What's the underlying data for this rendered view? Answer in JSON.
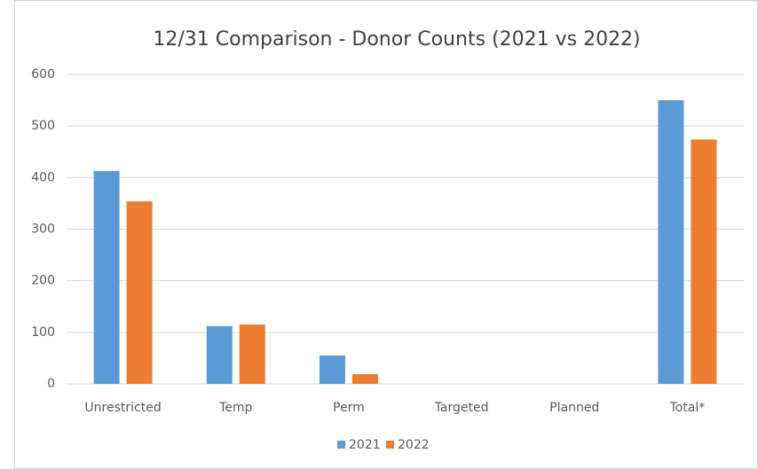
{
  "chart_data": {
    "type": "bar",
    "title": "12/31 Comparison - Donor Counts (2021 vs 2022)",
    "categories": [
      "Unrestricted",
      "Temp",
      "Perm",
      "Targeted",
      "Planned",
      "Total*"
    ],
    "series": [
      {
        "name": "2021",
        "color": "#5b9bd5",
        "values": [
          413,
          112,
          55,
          0,
          0,
          550
        ]
      },
      {
        "name": "2022",
        "color": "#ed7d31",
        "values": [
          354,
          115,
          19,
          0,
          0,
          474
        ]
      }
    ],
    "ylim": [
      0,
      600
    ],
    "yticks": [
      0,
      100,
      200,
      300,
      400,
      500,
      600
    ],
    "grid": true,
    "legend": "bottom"
  }
}
